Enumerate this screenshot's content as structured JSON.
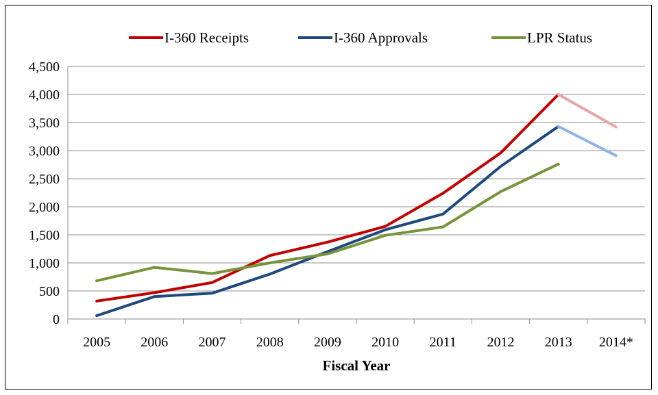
{
  "chart_data": {
    "type": "line",
    "title": "",
    "xlabel": "Fiscal Year",
    "ylabel": "",
    "categories": [
      "2005",
      "2006",
      "2007",
      "2008",
      "2009",
      "2010",
      "2011",
      "2012",
      "2013",
      "2014*"
    ],
    "ylim": [
      0,
      4500
    ],
    "yticks": [
      0,
      500,
      1000,
      1500,
      2000,
      2500,
      3000,
      3500,
      4000,
      4500
    ],
    "ytick_labels": [
      "0",
      "500",
      "1,000",
      "1,500",
      "2,000",
      "2,500",
      "3,000",
      "3,500",
      "4,000",
      "4,500"
    ],
    "grid": true,
    "legend_position": "top",
    "projected_category": "2014*",
    "series": [
      {
        "name": "I-360 Receipts",
        "color": "#c00000",
        "projected_color": "#e6a6a6",
        "values": [
          320,
          470,
          650,
          1130,
          1370,
          1650,
          2240,
          2960,
          4000,
          3420
        ]
      },
      {
        "name": "I-360 Approvals",
        "color": "#1f497d",
        "projected_color": "#8fb4e3",
        "values": [
          60,
          400,
          460,
          800,
          1200,
          1590,
          1870,
          2720,
          3430,
          2910
        ]
      },
      {
        "name": "LPR Status",
        "color": "#77933c",
        "projected_color": "#77933c",
        "values": [
          680,
          920,
          810,
          1000,
          1160,
          1490,
          1640,
          2270,
          2760,
          null
        ]
      }
    ]
  }
}
